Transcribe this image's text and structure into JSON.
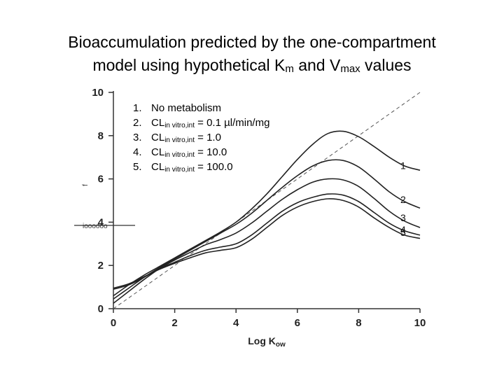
{
  "slide": {
    "title_line1": "Bioaccumulation predicted by the one-compartment",
    "title_line2_a": "model using hypothetical K",
    "title_line2_sub1": "m",
    "title_line2_b": " and V",
    "title_line2_sub2": "max",
    "title_line2_c": " values"
  },
  "chart_data": {
    "type": "line",
    "xlabel_main": "Log K",
    "xlabel_sub": "ow",
    "ylabel_fragment": "f",
    "ytick_fragment": "ioooooo",
    "xlim": [
      0,
      10
    ],
    "ylim": [
      0,
      10
    ],
    "xticks": [
      0,
      2,
      4,
      6,
      8,
      10
    ],
    "yticks": [
      0,
      2,
      4,
      6,
      8,
      10
    ],
    "grid": false,
    "reference_line": {
      "style": "dashed",
      "x": [
        0,
        10
      ],
      "y": [
        0,
        10
      ]
    },
    "legend": {
      "position": "top-left",
      "entries": [
        {
          "num": "1.",
          "main": "No metabolism",
          "sub": "",
          "rest": ""
        },
        {
          "num": "2.",
          "main": "CL",
          "sub": "in vitro,int",
          "rest": " = 0.1 µl/min/mg"
        },
        {
          "num": "3.",
          "main": "CL",
          "sub": "in vitro,int",
          "rest": " = 1.0"
        },
        {
          "num": "4.",
          "main": "CL",
          "sub": "in vitro,int",
          "rest": " = 10.0"
        },
        {
          "num": "5.",
          "main": "CL",
          "sub": "in vitro,int",
          "rest": " = 100.0"
        }
      ]
    },
    "x": [
      0,
      0.5,
      1,
      1.5,
      2,
      2.5,
      3,
      3.5,
      4,
      4.5,
      5,
      5.5,
      6,
      6.5,
      7,
      7.5,
      8,
      8.5,
      9,
      9.5,
      10
    ],
    "series": [
      {
        "label": "1",
        "values": [
          0.6,
          1.1,
          1.55,
          1.95,
          2.35,
          2.75,
          3.15,
          3.55,
          4.0,
          4.6,
          5.3,
          6.1,
          6.9,
          7.6,
          8.1,
          8.2,
          7.95,
          7.5,
          7.0,
          6.6,
          6.4
        ]
      },
      {
        "label": "2",
        "values": [
          0.45,
          0.95,
          1.45,
          1.9,
          2.3,
          2.7,
          3.1,
          3.5,
          3.9,
          4.4,
          5.0,
          5.6,
          6.15,
          6.6,
          6.85,
          6.85,
          6.55,
          6.0,
          5.4,
          4.95,
          4.65
        ]
      },
      {
        "label": "3",
        "values": [
          0.25,
          0.8,
          1.35,
          1.85,
          2.25,
          2.6,
          2.95,
          3.2,
          3.5,
          3.95,
          4.5,
          5.05,
          5.5,
          5.85,
          6.0,
          5.95,
          5.65,
          5.1,
          4.5,
          4.05,
          3.75
        ]
      },
      {
        "label": "4",
        "values": [
          0.9,
          1.1,
          1.45,
          1.85,
          2.15,
          2.45,
          2.7,
          2.85,
          3.0,
          3.4,
          3.95,
          4.5,
          4.9,
          5.15,
          5.3,
          5.25,
          4.95,
          4.45,
          3.95,
          3.6,
          3.4
        ]
      },
      {
        "label": "5",
        "values": [
          0.95,
          1.15,
          1.48,
          1.82,
          2.1,
          2.35,
          2.58,
          2.7,
          2.82,
          3.2,
          3.75,
          4.3,
          4.7,
          4.95,
          5.08,
          5.0,
          4.7,
          4.2,
          3.75,
          3.4,
          3.25
        ]
      }
    ]
  }
}
